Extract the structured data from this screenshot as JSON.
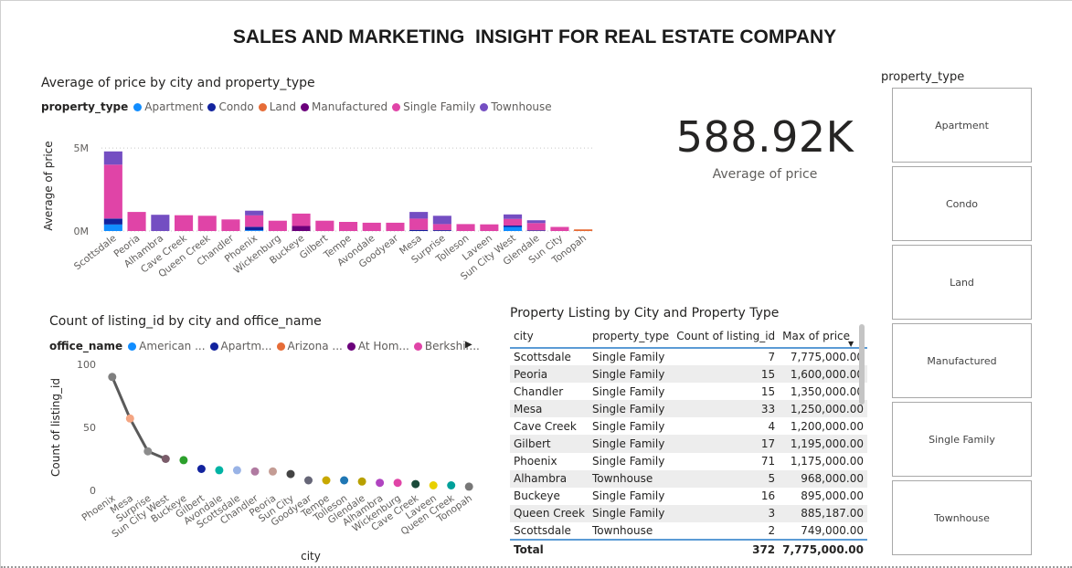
{
  "page_title": "SALES AND MARKETING  INSIGHT FOR REAL ESTATE COMPANY",
  "kpi": {
    "value": "588.92K",
    "label": "Average of price"
  },
  "slicer": {
    "title": "property_type",
    "options": [
      "Apartment",
      "Condo",
      "Land",
      "Manufactured",
      "Single Family",
      "Townhouse"
    ]
  },
  "chart1_legend": {
    "title": "property_type",
    "items": [
      {
        "label": "Apartment",
        "color": "#118dff"
      },
      {
        "label": "Condo",
        "color": "#12239e"
      },
      {
        "label": "Land",
        "color": "#e66c37"
      },
      {
        "label": "Manufactured",
        "color": "#6b007b"
      },
      {
        "label": "Single Family",
        "color": "#e044a7"
      },
      {
        "label": "Townhouse",
        "color": "#744ec2"
      }
    ]
  },
  "chart2_legend": {
    "title": "office_name",
    "items": [
      {
        "label": "American ...",
        "color": "#118dff"
      },
      {
        "label": "Apartm...",
        "color": "#12239e"
      },
      {
        "label": "Arizona ...",
        "color": "#e66c37"
      },
      {
        "label": "At Hom...",
        "color": "#6b007b"
      },
      {
        "label": "Berkshir...",
        "color": "#e044a7"
      }
    ],
    "more_arrow": "▶"
  },
  "chart_data": [
    {
      "type": "bar",
      "stacked": true,
      "title": "Average of price by city and property_type",
      "xlabel": "",
      "ylabel": "Average of price",
      "ylim": [
        0,
        6000000
      ],
      "yticks": [
        {
          "value": 0,
          "label": "0M"
        },
        {
          "value": 5000000,
          "label": "5M"
        }
      ],
      "grid": true,
      "categories": [
        "Scottsdale",
        "Peoria",
        "Alhambra",
        "Cave Creek",
        "Queen Creek",
        "Chandler",
        "Phoenix",
        "Wickenburg",
        "Buckeye",
        "Gilbert",
        "Tempe",
        "Avondale",
        "Goodyear",
        "Mesa",
        "Surprise",
        "Tolleson",
        "Laveen",
        "Sun City West",
        "Glendale",
        "Sun City",
        "Tonopah"
      ],
      "series": [
        {
          "name": "Apartment",
          "color": "#118dff",
          "values": [
            400000,
            0,
            0,
            0,
            0,
            0,
            50000,
            0,
            0,
            0,
            0,
            0,
            0,
            0,
            0,
            0,
            0,
            250000,
            0,
            0,
            0
          ]
        },
        {
          "name": "Condo",
          "color": "#12239e",
          "values": [
            350000,
            0,
            0,
            0,
            0,
            0,
            200000,
            0,
            0,
            0,
            0,
            0,
            0,
            70000,
            50000,
            0,
            0,
            80000,
            40000,
            0,
            0
          ]
        },
        {
          "name": "Land",
          "color": "#e66c37",
          "values": [
            0,
            0,
            0,
            0,
            0,
            0,
            0,
            0,
            0,
            0,
            0,
            0,
            0,
            0,
            0,
            0,
            0,
            0,
            0,
            0,
            100000
          ]
        },
        {
          "name": "Manufactured",
          "color": "#6b007b",
          "values": [
            0,
            0,
            0,
            0,
            0,
            0,
            0,
            0,
            300000,
            0,
            0,
            0,
            0,
            0,
            0,
            0,
            0,
            0,
            0,
            0,
            0
          ]
        },
        {
          "name": "Single Family",
          "color": "#e044a7",
          "values": [
            3250000,
            1150000,
            0,
            950000,
            920000,
            700000,
            700000,
            620000,
            750000,
            620000,
            550000,
            500000,
            500000,
            680000,
            370000,
            420000,
            400000,
            400000,
            440000,
            250000,
            0
          ]
        },
        {
          "name": "Townhouse",
          "color": "#744ec2",
          "values": [
            800000,
            0,
            980000,
            0,
            0,
            0,
            280000,
            0,
            0,
            0,
            0,
            0,
            0,
            400000,
            500000,
            0,
            0,
            270000,
            170000,
            0,
            0
          ]
        }
      ]
    },
    {
      "type": "scatter",
      "title": "Count of listing_id by city and office_name",
      "xlabel": "city",
      "ylabel": "Count of listing_id",
      "ylim": [
        0,
        100
      ],
      "yticks": [
        0,
        50,
        100
      ],
      "categories": [
        "Phoenix",
        "Mesa",
        "Surprise",
        "Sun City West",
        "Buckeye",
        "Gilbert",
        "Avondale",
        "Scottsdale",
        "Chandler",
        "Peoria",
        "Sun City",
        "Goodyear",
        "Tempe",
        "Tolleson",
        "Glendale",
        "Alhambra",
        "Wickenburg",
        "Cave Creek",
        "Laveen",
        "Queen Creek",
        "Tonopah"
      ],
      "values": [
        90,
        57,
        31,
        25,
        24,
        17,
        16,
        16,
        15,
        15,
        13,
        8,
        8,
        8,
        7,
        6,
        6,
        5,
        4,
        4,
        3
      ],
      "colors": [
        "#7f7f7f",
        "#f4a582",
        "#8c8c8c",
        "#7a5c6a",
        "#2ca02c",
        "#12239e",
        "#00b3a4",
        "#99b3e6",
        "#b07aa1",
        "#c49c94",
        "#444444",
        "#666677",
        "#c8a800",
        "#1f77b4",
        "#b8a000",
        "#b044c0",
        "#e044a7",
        "#1a4a3a",
        "#e8d000",
        "#00a09a",
        "#777777"
      ]
    }
  ],
  "table": {
    "title": "Property Listing by City and Property Type",
    "columns": [
      "city",
      "property_type",
      "Count of listing_id",
      "Max of price"
    ],
    "sort_indicator": "▼",
    "rows": [
      [
        "Scottsdale",
        "Single Family",
        "7",
        "7,775,000.00"
      ],
      [
        "Peoria",
        "Single Family",
        "15",
        "1,600,000.00"
      ],
      [
        "Chandler",
        "Single Family",
        "15",
        "1,350,000.00"
      ],
      [
        "Mesa",
        "Single Family",
        "33",
        "1,250,000.00"
      ],
      [
        "Cave Creek",
        "Single Family",
        "4",
        "1,200,000.00"
      ],
      [
        "Gilbert",
        "Single Family",
        "17",
        "1,195,000.00"
      ],
      [
        "Phoenix",
        "Single Family",
        "71",
        "1,175,000.00"
      ],
      [
        "Alhambra",
        "Townhouse",
        "5",
        "968,000.00"
      ],
      [
        "Buckeye",
        "Single Family",
        "16",
        "895,000.00"
      ],
      [
        "Queen Creek",
        "Single Family",
        "3",
        "885,187.00"
      ],
      [
        "Scottsdale",
        "Townhouse",
        "2",
        "749,000.00"
      ]
    ],
    "total": [
      "Total",
      "",
      "372",
      "7,775,000.00"
    ]
  }
}
